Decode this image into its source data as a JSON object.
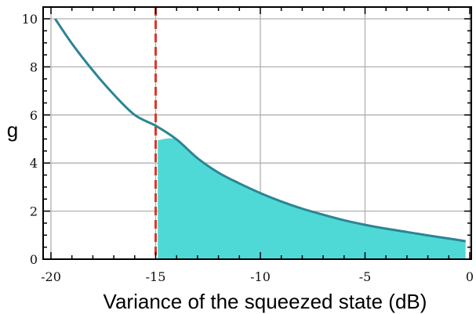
{
  "chart_data": {
    "type": "area",
    "title": "",
    "xlabel": "Variance of the squeezed state (dB)",
    "ylabel": "g",
    "xlim": [
      -20,
      0
    ],
    "ylim": [
      0,
      10
    ],
    "xticks": [
      -20,
      -15,
      -10,
      -5,
      0
    ],
    "xtick_labels": [
      "-20",
      "-15",
      "-10",
      "-5",
      "0"
    ],
    "yticks": [
      0,
      2,
      4,
      6,
      8,
      10
    ],
    "ytick_labels": [
      "0",
      "2",
      "4",
      "6",
      "8",
      "10"
    ],
    "grid": true,
    "series": [
      {
        "x": [
          -19.8,
          -19,
          -18,
          -17,
          -16,
          -15,
          -14,
          -13,
          -12,
          -11,
          -10,
          -9,
          -8,
          -7,
          -6,
          -5,
          -4,
          -3,
          -2,
          -1,
          -0.2
        ],
        "y": [
          10.0,
          8.97,
          7.85,
          6.85,
          6.0,
          5.55,
          4.98,
          4.2,
          3.6,
          3.15,
          2.75,
          2.4,
          2.1,
          1.85,
          1.62,
          1.43,
          1.27,
          1.13,
          0.99,
          0.86,
          0.75
        ]
      }
    ],
    "shaded_region": {
      "x_from": -14.9,
      "x_to": -0.2,
      "y_top_at_start": 4.95,
      "fill": "#4fd9d6"
    },
    "threshold_line": {
      "x": -15,
      "style": "dashed",
      "color": "#d93a2b"
    },
    "line_color": "#2a8595",
    "grid_color": "#b0b0b0"
  }
}
